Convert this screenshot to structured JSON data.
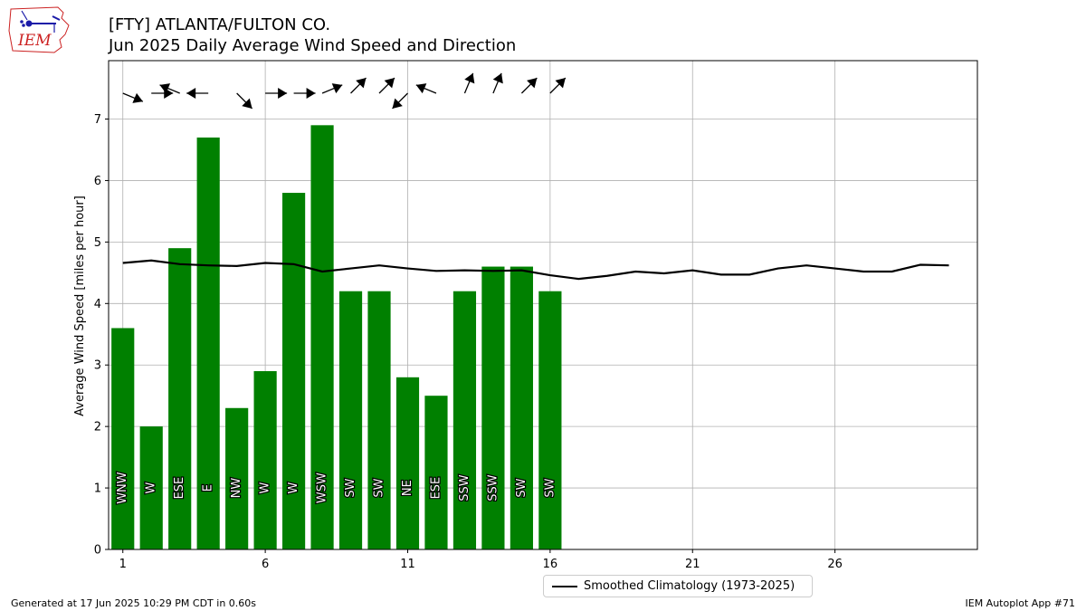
{
  "header": {
    "title_line1": "[FTY] ATLANTA/FULTON CO.",
    "title_line2": "Jun 2025 Daily Average Wind Speed and Direction"
  },
  "logo": {
    "text": "IEM",
    "icon": "iem-iowa-map-logo",
    "color": "#cc2222"
  },
  "footer": {
    "generated": "Generated at 17 Jun 2025 10:29 PM CDT in 0.60s",
    "app": "IEM Autoplot App #71"
  },
  "chart_data": {
    "type": "bar",
    "ylabel": "Average Wind Speed [miles per hour]",
    "xlim": [
      0.5,
      31
    ],
    "ylim": [
      0,
      7.95
    ],
    "xticks": [
      1,
      6,
      11,
      16,
      21,
      26
    ],
    "yticks": [
      0,
      1,
      2,
      3,
      4,
      5,
      6,
      7
    ],
    "grid": true,
    "bar_color": "#008000",
    "days": [
      1,
      2,
      3,
      4,
      5,
      6,
      7,
      8,
      9,
      10,
      11,
      12,
      13,
      14,
      15,
      16
    ],
    "speed": [
      3.6,
      2.0,
      4.9,
      6.7,
      2.3,
      2.9,
      5.8,
      6.9,
      4.2,
      4.2,
      2.8,
      2.5,
      4.2,
      4.6,
      4.6,
      4.2
    ],
    "direction_labels": [
      "WNW",
      "W",
      "ESE",
      "E",
      "NW",
      "W",
      "W",
      "WSW",
      "SW",
      "SW",
      "NE",
      "ESE",
      "SSW",
      "SSW",
      "SW",
      "SW"
    ],
    "direction_degrees": [
      292.5,
      270,
      112.5,
      90,
      315,
      270,
      270,
      247.5,
      225,
      225,
      45,
      112.5,
      202.5,
      202.5,
      225,
      225
    ],
    "climatology": {
      "name": "Smoothed Climatology (1973-2025)",
      "color": "#000000",
      "x": [
        1,
        2,
        3,
        4,
        5,
        6,
        7,
        8,
        9,
        10,
        11,
        12,
        13,
        14,
        15,
        16,
        17,
        18,
        19,
        20,
        21,
        22,
        23,
        24,
        25,
        26,
        27,
        28,
        29,
        30
      ],
      "values": [
        4.66,
        4.7,
        4.64,
        4.62,
        4.61,
        4.66,
        4.64,
        4.52,
        4.57,
        4.62,
        4.57,
        4.53,
        4.54,
        4.53,
        4.54,
        4.46,
        4.4,
        4.45,
        4.52,
        4.49,
        4.54,
        4.47,
        4.47,
        4.57,
        4.62,
        4.57,
        4.52,
        4.52,
        4.63,
        4.62
      ]
    },
    "legend_position": "below-center"
  }
}
